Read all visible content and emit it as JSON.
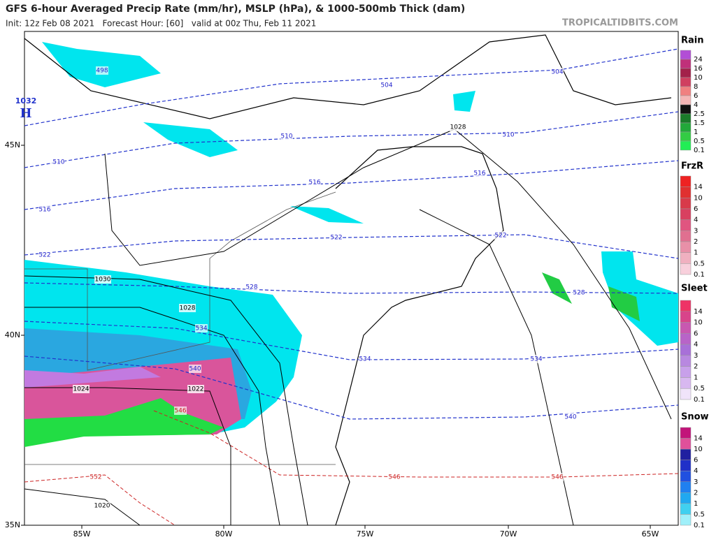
{
  "header": {
    "title": "GFS 6-hour Averaged Precip Rate (mm/hr), MSLP (hPa), & 1000-500mb Thick (dam)",
    "subtitle": "Init: 12z Feb 08 2021   Forecast Hour: [60]   valid at 00z Thu, Feb 11 2021",
    "credit": "TROPICALTIDBITS.COM"
  },
  "map": {
    "lon_labels": [
      "85W",
      "80W",
      "75W",
      "70W",
      "65W"
    ],
    "lat_labels": [
      "45N",
      "40N",
      "35N"
    ],
    "high": {
      "pressure": "1032",
      "symbol": "H"
    },
    "isobar_labels": [
      "1028",
      "1030",
      "1028",
      "1024",
      "1022",
      "1020"
    ],
    "thickness_labels": [
      "498",
      "504",
      "504",
      "510",
      "510",
      "510",
      "516",
      "516",
      "516",
      "522",
      "522",
      "522",
      "528",
      "528",
      "534",
      "534",
      "534",
      "540",
      "540",
      "546",
      "546",
      "546",
      "552"
    ]
  },
  "legends": [
    {
      "title": "Rain",
      "labels": [
        "24",
        "16",
        "10",
        "8",
        "6",
        "4",
        "2.5",
        "1.5",
        "1",
        "0.5",
        "0.1"
      ]
    },
    {
      "title": "FrzR",
      "labels": [
        "14",
        "10",
        "6",
        "4",
        "3",
        "2",
        "1",
        "0.5",
        "0.1"
      ]
    },
    {
      "title": "Sleet",
      "labels": [
        "14",
        "10",
        "6",
        "4",
        "3",
        "2",
        "1",
        "0.5",
        "0.1"
      ]
    },
    {
      "title": "Snow",
      "labels": [
        "14",
        "10",
        "6",
        "4",
        "3",
        "2",
        "1",
        "0.5",
        "0.1"
      ]
    }
  ]
}
